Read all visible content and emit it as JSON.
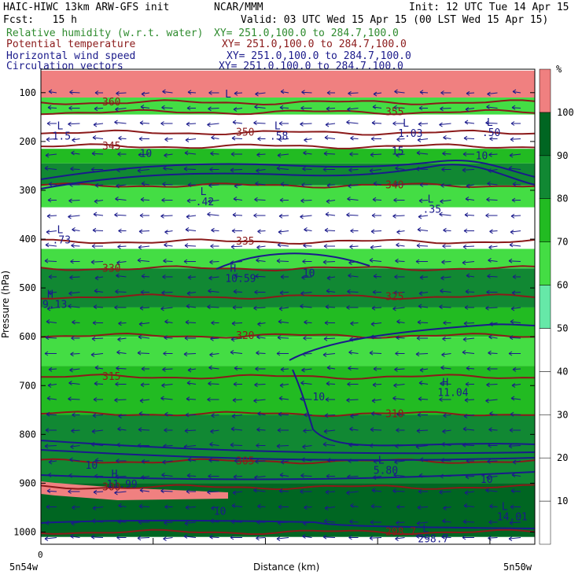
{
  "header": {
    "model": "HAIC-HIWC 13km ARW-GFS init",
    "org": "NCAR/MMM",
    "init": "Init: 12 UTC Tue 14 Apr 15",
    "fcst": "Fcst:   15 h",
    "valid": "Valid: 03 UTC Wed 15 Apr 15 (00 LST Wed 15 Apr 15)"
  },
  "fields": [
    {
      "name": "Relative humidity (w.r.t. water)",
      "xy": "XY= 251.0,100.0 to 284.7,100.0",
      "color": "#2e8b2e"
    },
    {
      "name": "Potential temperature",
      "xy": "XY= 251.0,100.0 to 284.7,100.0",
      "color": "#8b1a1a"
    },
    {
      "name": "Horizontal wind speed",
      "xy": "XY= 251.0,100.0 to 284.7,100.0",
      "color": "#1a1a8b"
    },
    {
      "name": "Circulation vectors",
      "xy": "XY= 251.0,100.0 to 284.7,100.0",
      "color": "#1a1a8b"
    }
  ],
  "chart_data": {
    "type": "heatmap",
    "ylabel": "Pressure (hPa)",
    "xlabel": "Distance (km)",
    "x_left_label": "5n54w",
    "x_right_label": "5n50w",
    "x_origin_label": "0",
    "y_ticks": [
      100,
      200,
      300,
      400,
      500,
      600,
      700,
      800,
      900,
      1000
    ],
    "ylim": [
      50,
      1025
    ],
    "colorbar": {
      "unit": "%",
      "ticks": [
        10,
        20,
        30,
        40,
        50,
        60,
        70,
        80,
        90,
        100
      ],
      "colors": [
        "#ffffff",
        "#ffffff",
        "#ffffff",
        "#ffffff",
        "#ffffff",
        "#66e8a8",
        "#44dd44",
        "#22bb22",
        "#118833",
        "#006622",
        "#f08080"
      ]
    },
    "rh_bands": [
      {
        "p_top": 55,
        "p_bot": 110,
        "rh": 100
      },
      {
        "p_top": 110,
        "p_bot": 145,
        "rh": 60
      },
      {
        "p_top": 145,
        "p_bot": 215,
        "rh": 20
      },
      {
        "p_top": 215,
        "p_bot": 245,
        "rh": 75
      },
      {
        "p_top": 245,
        "p_bot": 290,
        "rh": 85
      },
      {
        "p_top": 290,
        "p_bot": 335,
        "rh": 60
      },
      {
        "p_top": 335,
        "p_bot": 420,
        "rh": 20
      },
      {
        "p_top": 420,
        "p_bot": 460,
        "rh": 60
      },
      {
        "p_top": 460,
        "p_bot": 540,
        "rh": 80
      },
      {
        "p_top": 540,
        "p_bot": 600,
        "rh": 70
      },
      {
        "p_top": 600,
        "p_bot": 660,
        "rh": 60
      },
      {
        "p_top": 660,
        "p_bot": 760,
        "rh": 75
      },
      {
        "p_top": 760,
        "p_bot": 900,
        "rh": 88
      },
      {
        "p_top": 900,
        "p_bot": 1010,
        "rh": 95
      }
    ],
    "theta_contours": [
      {
        "value": 360,
        "p": 120
      },
      {
        "value": 355,
        "p": 140
      },
      {
        "value": 350,
        "p": 182
      },
      {
        "value": 345,
        "p": 210
      },
      {
        "value": 340,
        "p": 290
      },
      {
        "value": 335,
        "p": 405
      },
      {
        "value": 330,
        "p": 460
      },
      {
        "value": 325,
        "p": 518
      },
      {
        "value": 320,
        "p": 598
      },
      {
        "value": 315,
        "p": 682
      },
      {
        "value": 310,
        "p": 758
      },
      {
        "value": 305,
        "p": 855
      },
      {
        "value": 300,
        "p": 908
      },
      {
        "value": 298.7,
        "p": 1000
      }
    ],
    "wind_labels": [
      {
        "text": "15",
        "xf": 0.71,
        "p": 220
      },
      {
        "text": "10",
        "xf": 0.2,
        "p": 225
      },
      {
        "text": "10",
        "xf": 0.53,
        "p": 470
      },
      {
        "text": "10",
        "xf": 0.55,
        "p": 724
      },
      {
        "text": "10",
        "xf": 0.09,
        "p": 864
      },
      {
        "text": "10",
        "xf": 0.89,
        "p": 893
      },
      {
        "text": "10",
        "xf": 0.35,
        "p": 958
      },
      {
        "text": "10",
        "xf": 0.88,
        "p": 230
      }
    ],
    "extrema": [
      {
        "kind": "L",
        "value": "1.5",
        "xf": 0.02,
        "p": 175
      },
      {
        "kind": "L",
        "value": ".58",
        "xf": 0.46,
        "p": 175
      },
      {
        "kind": "L",
        "value": "1.03",
        "xf": 0.72,
        "p": 170
      },
      {
        "kind": "L",
        "value": ".50",
        "xf": 0.89,
        "p": 168
      },
      {
        "kind": "L",
        "value": ".42",
        "xf": 0.31,
        "p": 310
      },
      {
        "kind": "L",
        "value": ".35",
        "xf": 0.77,
        "p": 325
      },
      {
        "kind": "L",
        "value": ".73",
        "xf": 0.02,
        "p": 388
      },
      {
        "kind": "H",
        "value": "10.59",
        "xf": 0.37,
        "p": 467
      },
      {
        "kind": "H",
        "value": "9.13",
        "xf": 0.0,
        "p": 520
      },
      {
        "kind": "H",
        "value": "11.04",
        "xf": 0.8,
        "p": 700
      },
      {
        "kind": "H",
        "value": "11.99",
        "xf": 0.13,
        "p": 888
      },
      {
        "kind": "L",
        "value": "5.80",
        "xf": 0.67,
        "p": 860
      },
      {
        "kind": "L",
        "value": "14.01",
        "xf": 0.92,
        "p": 955
      },
      {
        "kind": "L",
        "value": "298.7",
        "xf": 0.76,
        "p": 1000
      },
      {
        "kind": "L",
        "value": "",
        "xf": 0.36,
        "p": 110
      }
    ]
  }
}
